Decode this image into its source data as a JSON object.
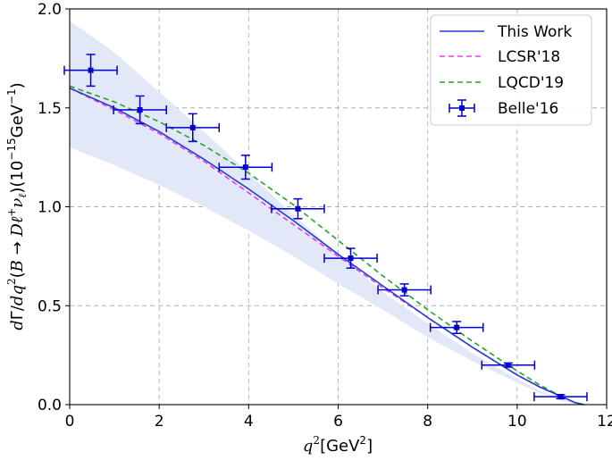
{
  "chart_data": {
    "type": "line",
    "title": "",
    "xlabel": "q^2[GeV^2]",
    "ylabel": "dΓ/dq^2(B→Dℓ+νℓ)(10^-15 GeV^-1)",
    "xlim": [
      0,
      12
    ],
    "ylim": [
      0,
      2.0
    ],
    "xticks": [
      0,
      2,
      4,
      6,
      8,
      10,
      12
    ],
    "xtick_labels": [
      "0",
      "2",
      "4",
      "6",
      "8",
      "10",
      "12"
    ],
    "yticks": [
      0.0,
      0.5,
      1.0,
      1.5,
      2.0
    ],
    "ytick_labels": [
      "0.0",
      "0.5",
      "1.0",
      "1.5",
      "2.0"
    ],
    "grid": true,
    "legend_position": "top-right",
    "colors": {
      "this_work": "#1f3fd6",
      "band": "#e3e8f8",
      "lcsr": "#e83be8",
      "lqcd": "#2ca02c",
      "belle": "#0000cc"
    },
    "band": {
      "name": "This Work uncertainty",
      "x": [
        0,
        1,
        2,
        3,
        4,
        5,
        6,
        7,
        8,
        9,
        10,
        10.5,
        11,
        11.3,
        11.5
      ],
      "upper": [
        1.94,
        1.78,
        1.58,
        1.38,
        1.17,
        0.96,
        0.76,
        0.57,
        0.41,
        0.26,
        0.13,
        0.07,
        0.03,
        0.01,
        0.0
      ],
      "lower": [
        1.3,
        1.21,
        1.11,
        1.0,
        0.88,
        0.75,
        0.61,
        0.48,
        0.34,
        0.22,
        0.11,
        0.06,
        0.02,
        0.005,
        0.0
      ]
    },
    "series": [
      {
        "name": "This Work",
        "style": "solid",
        "x": [
          0,
          1,
          2,
          3,
          4,
          5,
          6,
          7,
          8,
          9,
          10,
          10.5,
          11,
          11.3,
          11.5
        ],
        "values": [
          1.6,
          1.5,
          1.38,
          1.24,
          1.09,
          0.93,
          0.76,
          0.6,
          0.44,
          0.29,
          0.15,
          0.09,
          0.04,
          0.01,
          0.0
        ]
      },
      {
        "name": "LCSR'18",
        "style": "dashed",
        "x": [
          0,
          1,
          2,
          3,
          4,
          5,
          6,
          7,
          8,
          9,
          10,
          10.5,
          11,
          11.3,
          11.5
        ],
        "values": [
          1.6,
          1.49,
          1.37,
          1.23,
          1.07,
          0.91,
          0.75,
          0.59,
          0.44,
          0.29,
          0.15,
          0.09,
          0.04,
          0.01,
          0.0
        ]
      },
      {
        "name": "LQCD'19",
        "style": "dashed",
        "x": [
          0,
          1,
          2,
          3,
          4,
          5,
          6,
          7,
          8,
          9,
          10,
          10.5,
          11,
          11.3,
          11.5
        ],
        "values": [
          1.61,
          1.53,
          1.43,
          1.31,
          1.17,
          1.01,
          0.83,
          0.65,
          0.48,
          0.32,
          0.17,
          0.1,
          0.04,
          0.01,
          0.0
        ]
      }
    ],
    "points": {
      "name": "Belle'16",
      "x": [
        0.47,
        1.57,
        2.75,
        3.93,
        5.1,
        6.28,
        7.48,
        8.65,
        9.8,
        10.97
      ],
      "y": [
        1.69,
        1.49,
        1.4,
        1.2,
        0.99,
        0.74,
        0.58,
        0.39,
        0.2,
        0.04
      ],
      "xerr": [
        0.59,
        0.59,
        0.59,
        0.59,
        0.59,
        0.59,
        0.59,
        0.59,
        0.59,
        0.59
      ],
      "yerr": [
        0.08,
        0.07,
        0.07,
        0.06,
        0.05,
        0.05,
        0.03,
        0.03,
        0.01,
        0.01
      ]
    }
  }
}
